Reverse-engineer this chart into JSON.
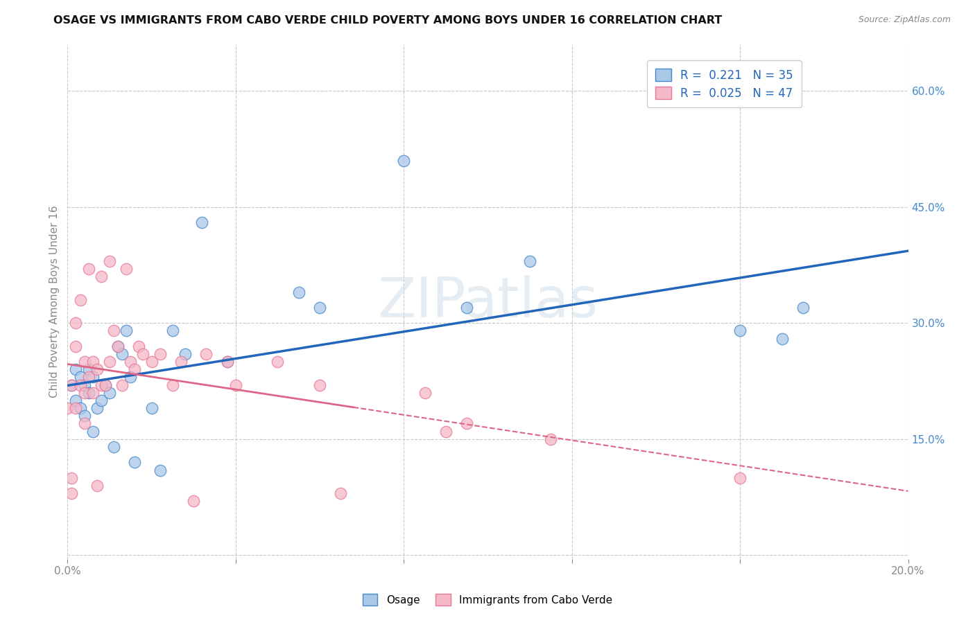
{
  "title": "OSAGE VS IMMIGRANTS FROM CABO VERDE CHILD POVERTY AMONG BOYS UNDER 16 CORRELATION CHART",
  "source": "Source: ZipAtlas.com",
  "ylabel": "Child Poverty Among Boys Under 16",
  "xlim": [
    0.0,
    0.2
  ],
  "ylim": [
    -0.005,
    0.66
  ],
  "xticks": [
    0.0,
    0.04,
    0.08,
    0.12,
    0.16,
    0.2
  ],
  "xticklabels": [
    "0.0%",
    "",
    "",
    "",
    "",
    "20.0%"
  ],
  "yticks_right": [
    0.0,
    0.15,
    0.3,
    0.45,
    0.6
  ],
  "yticklabels_right": [
    "",
    "15.0%",
    "30.0%",
    "45.0%",
    "60.0%"
  ],
  "legend_labels": [
    "Osage",
    "Immigrants from Cabo Verde"
  ],
  "r_osage": 0.221,
  "n_osage": 35,
  "r_cabo": 0.025,
  "n_cabo": 47,
  "background_color": "#ffffff",
  "grid_color": "#c8c8c8",
  "blue_fill": "#aac8e8",
  "pink_fill": "#f5b8c8",
  "blue_edge": "#4488cc",
  "pink_edge": "#e87898",
  "blue_line": "#2266bb",
  "pink_line": "#dd6688",
  "title_color": "#111111",
  "right_label_color": "#4488cc",
  "tick_color": "#888888",
  "osage_x": [
    0.001,
    0.002,
    0.002,
    0.003,
    0.003,
    0.004,
    0.004,
    0.005,
    0.005,
    0.006,
    0.006,
    0.007,
    0.008,
    0.009,
    0.01,
    0.011,
    0.012,
    0.013,
    0.014,
    0.015,
    0.016,
    0.02,
    0.022,
    0.025,
    0.028,
    0.032,
    0.038,
    0.055,
    0.06,
    0.08,
    0.095,
    0.11,
    0.16,
    0.17,
    0.175
  ],
  "osage_y": [
    0.22,
    0.2,
    0.24,
    0.19,
    0.23,
    0.22,
    0.18,
    0.24,
    0.21,
    0.23,
    0.16,
    0.19,
    0.2,
    0.22,
    0.21,
    0.14,
    0.27,
    0.26,
    0.29,
    0.23,
    0.12,
    0.19,
    0.11,
    0.29,
    0.26,
    0.43,
    0.25,
    0.34,
    0.32,
    0.51,
    0.32,
    0.38,
    0.29,
    0.28,
    0.32
  ],
  "cabo_x": [
    0.0,
    0.001,
    0.001,
    0.001,
    0.002,
    0.002,
    0.002,
    0.003,
    0.003,
    0.004,
    0.004,
    0.004,
    0.005,
    0.005,
    0.006,
    0.006,
    0.007,
    0.007,
    0.008,
    0.008,
    0.009,
    0.01,
    0.01,
    0.011,
    0.012,
    0.013,
    0.014,
    0.015,
    0.016,
    0.017,
    0.018,
    0.02,
    0.022,
    0.025,
    0.027,
    0.03,
    0.033,
    0.038,
    0.04,
    0.05,
    0.06,
    0.065,
    0.085,
    0.09,
    0.095,
    0.115,
    0.16
  ],
  "cabo_y": [
    0.19,
    0.22,
    0.1,
    0.08,
    0.27,
    0.3,
    0.19,
    0.33,
    0.22,
    0.25,
    0.21,
    0.17,
    0.37,
    0.23,
    0.25,
    0.21,
    0.24,
    0.09,
    0.22,
    0.36,
    0.22,
    0.38,
    0.25,
    0.29,
    0.27,
    0.22,
    0.37,
    0.25,
    0.24,
    0.27,
    0.26,
    0.25,
    0.26,
    0.22,
    0.25,
    0.07,
    0.26,
    0.25,
    0.22,
    0.25,
    0.22,
    0.08,
    0.21,
    0.16,
    0.17,
    0.15,
    0.1
  ]
}
